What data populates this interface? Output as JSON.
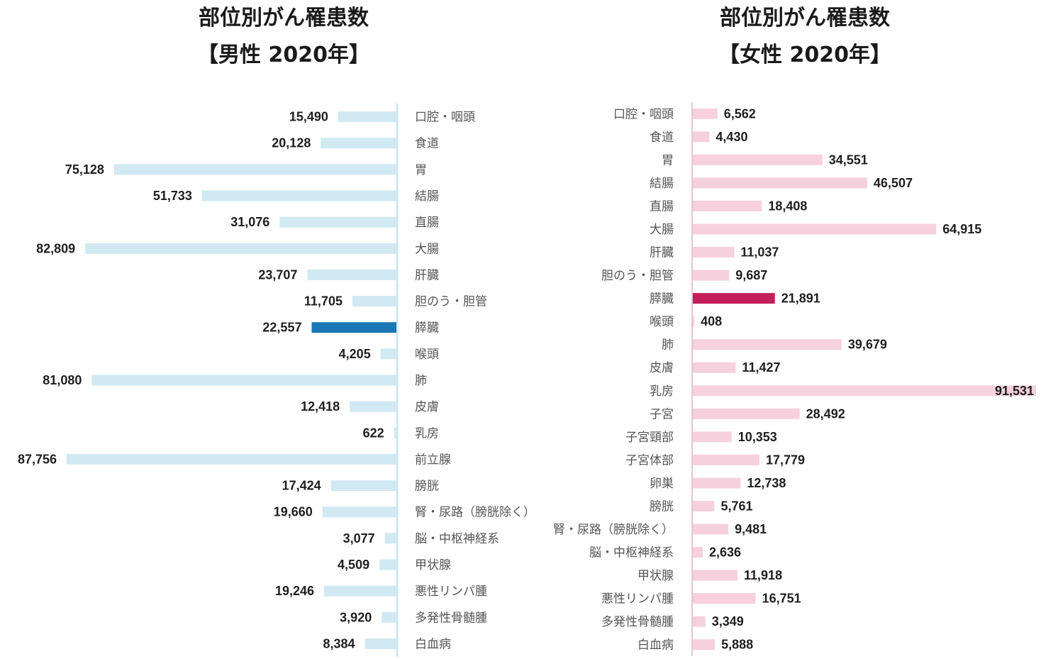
{
  "chart_data": [
    {
      "type": "bar",
      "orientation": "horizontal",
      "direction": "right-to-left",
      "title": [
        "部位別がん罹患数",
        "【男性 2020年】"
      ],
      "categories": [
        "口腔・咽頭",
        "食道",
        "胃",
        "結腸",
        "直腸",
        "大腸",
        "肝臓",
        "胆のう・胆管",
        "膵臓",
        "喉頭",
        "肺",
        "皮膚",
        "乳房",
        "前立腺",
        "膀胱",
        "腎・尿路（膀胱除く）",
        "脳・中枢神経系",
        "甲状腺",
        "悪性リンパ腫",
        "多発性骨髄腫",
        "白血病"
      ],
      "values": [
        15490,
        20128,
        75128,
        51733,
        31076,
        82809,
        23707,
        11705,
        22557,
        4205,
        81080,
        12418,
        622,
        87756,
        17424,
        19660,
        3077,
        4509,
        19246,
        3920,
        8384
      ],
      "labels": [
        "15,490",
        "20,128",
        "75,128",
        "51,733",
        "31,076",
        "82,809",
        "23,707",
        "11,705",
        "22,557",
        "4,205",
        "81,080",
        "12,418",
        "622",
        "87,756",
        "17,424",
        "19,660",
        "3,077",
        "4,509",
        "19,246",
        "3,920",
        "8,384"
      ],
      "highlight_index": 8,
      "colors": {
        "bar": "#d1e9f3",
        "highlight": "#1a78b6"
      },
      "xlim": [
        0,
        87756
      ]
    },
    {
      "type": "bar",
      "orientation": "horizontal",
      "direction": "left-to-right",
      "title": [
        "部位別がん罹患数",
        "【女性 2020年】"
      ],
      "categories": [
        "口腔・咽頭",
        "食道",
        "胃",
        "結腸",
        "直腸",
        "大腸",
        "肝臓",
        "胆のう・胆管",
        "膵臓",
        "喉頭",
        "肺",
        "皮膚",
        "乳房",
        "子宮",
        "子宮頸部",
        "子宮体部",
        "卵巣",
        "膀胱",
        "腎・尿路（膀胱除く）",
        "脳・中枢神経系",
        "甲状腺",
        "悪性リンパ腫",
        "多発性骨髄腫",
        "白血病"
      ],
      "values": [
        6562,
        4430,
        34551,
        46507,
        18408,
        64915,
        11037,
        9687,
        21891,
        408,
        39679,
        11427,
        91531,
        28492,
        10353,
        17779,
        12738,
        5761,
        9481,
        2636,
        11918,
        16751,
        3349,
        5888
      ],
      "labels": [
        "6,562",
        "4,430",
        "34,551",
        "46,507",
        "18,408",
        "64,915",
        "11,037",
        "9,687",
        "21,891",
        "408",
        "39,679",
        "11,427",
        "91,531",
        "28,492",
        "10,353",
        "17,779",
        "12,738",
        "5,761",
        "9,481",
        "2,636",
        "11,918",
        "16,751",
        "3,349",
        "5,888"
      ],
      "highlight_index": 8,
      "colors": {
        "bar": "#f6d1dd",
        "highlight": "#c41e5a"
      },
      "xlim": [
        0,
        91531
      ]
    }
  ]
}
